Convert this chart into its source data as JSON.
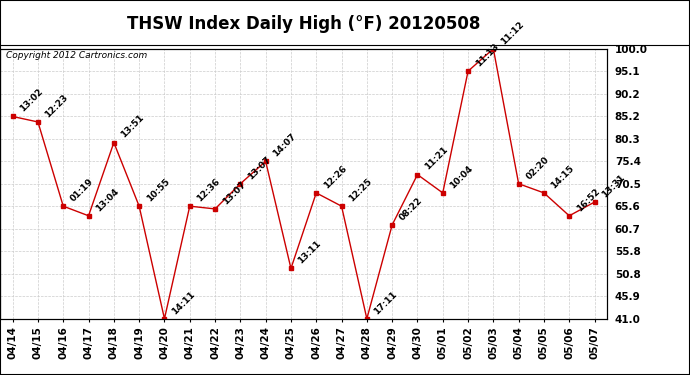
{
  "title": "THSW Index Daily High (°F) 20120508",
  "copyright": "Copyright 2012 Cartronics.com",
  "dates": [
    "04/14",
    "04/15",
    "04/16",
    "04/17",
    "04/18",
    "04/19",
    "04/20",
    "04/21",
    "04/22",
    "04/23",
    "04/24",
    "04/25",
    "04/26",
    "04/27",
    "04/28",
    "04/29",
    "04/30",
    "05/01",
    "05/02",
    "05/03",
    "05/04",
    "05/05",
    "05/06",
    "05/07"
  ],
  "values": [
    85.2,
    84.0,
    65.6,
    63.5,
    79.5,
    65.6,
    41.0,
    65.6,
    65.0,
    70.5,
    75.4,
    52.0,
    68.5,
    65.6,
    41.0,
    61.5,
    72.5,
    68.5,
    95.1,
    100.0,
    70.5,
    68.5,
    63.5,
    66.5
  ],
  "labels": [
    "13:02",
    "12:23",
    "01:19",
    "13:04",
    "13:51",
    "10:55",
    "14:11",
    "12:36",
    "13:07",
    "13:07",
    "14:07",
    "13:11",
    "12:26",
    "12:25",
    "17:11",
    "08:22",
    "11:21",
    "10:04",
    "11:13",
    "11:12",
    "02:20",
    "14:15",
    "16:52",
    "13:31"
  ],
  "line_color": "#cc0000",
  "marker_color": "#cc0000",
  "marker_size": 3,
  "background_color": "#ffffff",
  "grid_color": "#cccccc",
  "ylim_min": 41.0,
  "ylim_max": 100.0,
  "yticks": [
    41.0,
    45.9,
    50.8,
    55.8,
    60.7,
    65.6,
    70.5,
    75.4,
    80.3,
    85.2,
    90.2,
    95.1,
    100.0
  ],
  "title_fontsize": 12,
  "label_fontsize": 6.5,
  "tick_fontsize": 7.5,
  "copyright_fontsize": 6.5
}
